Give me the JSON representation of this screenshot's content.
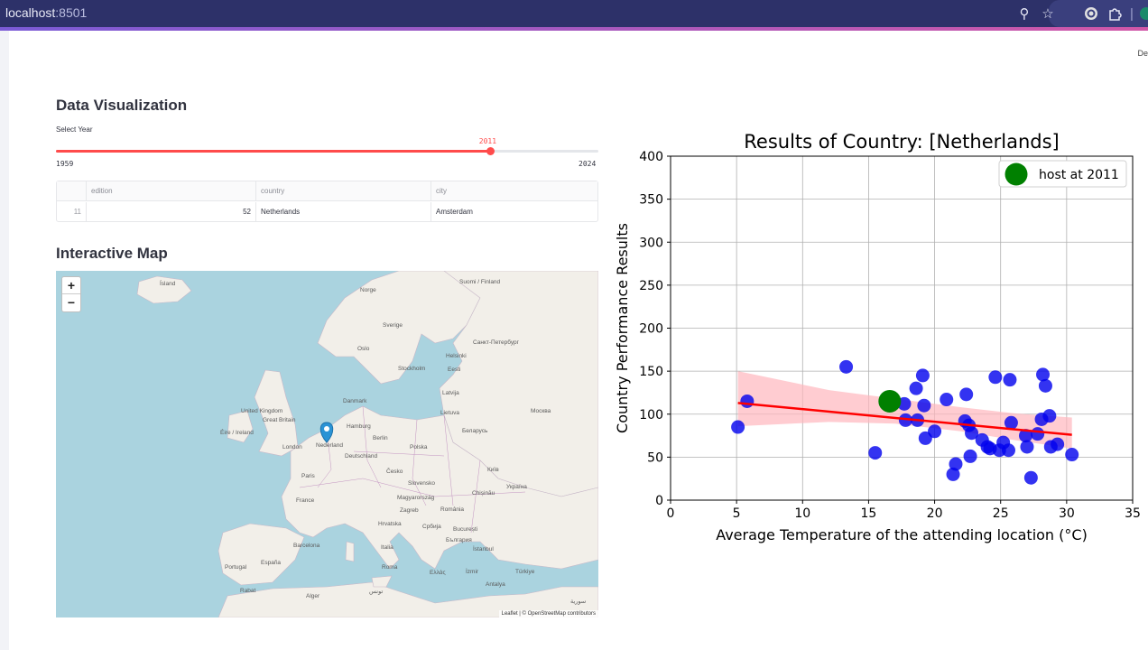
{
  "browser": {
    "url_host": "localhost",
    "url_port": ":8501"
  },
  "deploy_label": "De",
  "sections": {
    "data_viz_title": "Data Visualization",
    "map_title": "Interactive Map"
  },
  "slider": {
    "label": "Select Year",
    "min": 1959,
    "max": 2024,
    "value": 2011,
    "min_label": "1959",
    "max_label": "2024",
    "value_label": "2011"
  },
  "table": {
    "columns": [
      "edition",
      "country",
      "city"
    ],
    "rows": [
      {
        "index": "11",
        "edition": "52",
        "country": "Netherlands",
        "city": "Amsterdam"
      }
    ]
  },
  "map": {
    "attribution": "Leaflet | © OpenStreetMap contributors",
    "zoom_in": "+",
    "zoom_out": "−",
    "labels": [
      {
        "text": "Ísland",
        "dx": 115,
        "dy": 11
      },
      {
        "text": "Norge",
        "dx": 337,
        "dy": 18
      },
      {
        "text": "Suomi / Finland",
        "dx": 447,
        "dy": 9
      },
      {
        "text": "Sverige",
        "dx": 362,
        "dy": 57
      },
      {
        "text": "Санкт-Петербург",
        "dx": 462,
        "dy": 76
      },
      {
        "text": "Oslo",
        "dx": 334,
        "dy": 83
      },
      {
        "text": "Helsinki",
        "dx": 432,
        "dy": 91
      },
      {
        "text": "Stockholm",
        "dx": 379,
        "dy": 105
      },
      {
        "text": "Eesti",
        "dx": 434,
        "dy": 106
      },
      {
        "text": "Latvija",
        "dx": 428,
        "dy": 132
      },
      {
        "text": "Danmark",
        "dx": 318,
        "dy": 141
      },
      {
        "text": "Lietuva",
        "dx": 426,
        "dy": 154
      },
      {
        "text": "Москва",
        "dx": 526,
        "dy": 152
      },
      {
        "text": "United Kingdom",
        "dx": 205,
        "dy": 152
      },
      {
        "text": "Great Britain",
        "dx": 229,
        "dy": 162
      },
      {
        "text": "Hamburg",
        "dx": 322,
        "dy": 169
      },
      {
        "text": "Беларусь",
        "dx": 450,
        "dy": 174
      },
      {
        "text": "Éire / Ireland",
        "dx": 182,
        "dy": 176
      },
      {
        "text": "Berlin",
        "dx": 351,
        "dy": 182
      },
      {
        "text": "London",
        "dx": 251,
        "dy": 192
      },
      {
        "text": "Nederland",
        "dx": 288,
        "dy": 190
      },
      {
        "text": "Polska",
        "dx": 392,
        "dy": 192
      },
      {
        "text": "Deutschland",
        "dx": 320,
        "dy": 202
      },
      {
        "text": "Paris",
        "dx": 272,
        "dy": 224
      },
      {
        "text": "Česko",
        "dx": 366,
        "dy": 219
      },
      {
        "text": "Київ",
        "dx": 478,
        "dy": 217
      },
      {
        "text": "Україна",
        "dx": 499,
        "dy": 236
      },
      {
        "text": "Slovensko",
        "dx": 390,
        "dy": 232
      },
      {
        "text": "Chișinău",
        "dx": 461,
        "dy": 243
      },
      {
        "text": "France",
        "dx": 266,
        "dy": 251
      },
      {
        "text": "Magyarország",
        "dx": 378,
        "dy": 248
      },
      {
        "text": "Zagreb",
        "dx": 381,
        "dy": 262
      },
      {
        "text": "România",
        "dx": 426,
        "dy": 261
      },
      {
        "text": "Hrvatska",
        "dx": 357,
        "dy": 277
      },
      {
        "text": "Србија",
        "dx": 406,
        "dy": 280
      },
      {
        "text": "București",
        "dx": 440,
        "dy": 283
      },
      {
        "text": "България",
        "dx": 432,
        "dy": 295
      },
      {
        "text": "Barcelona",
        "dx": 263,
        "dy": 301
      },
      {
        "text": "Italia",
        "dx": 360,
        "dy": 303
      },
      {
        "text": "İstanbul",
        "dx": 462,
        "dy": 305
      },
      {
        "text": "Portugal",
        "dx": 187,
        "dy": 325
      },
      {
        "text": "España",
        "dx": 227,
        "dy": 320
      },
      {
        "text": "Roma",
        "dx": 361,
        "dy": 325
      },
      {
        "text": "Ελλάς",
        "dx": 414,
        "dy": 331
      },
      {
        "text": "İzmir",
        "dx": 454,
        "dy": 330
      },
      {
        "text": "Türkiye",
        "dx": 509,
        "dy": 330
      },
      {
        "text": "Antalya",
        "dx": 476,
        "dy": 344
      },
      {
        "text": "Rabat",
        "dx": 204,
        "dy": 351
      },
      {
        "text": "Alger",
        "dx": 277,
        "dy": 357
      },
      {
        "text": "تونس",
        "dx": 347,
        "dy": 351
      },
      {
        "text": "سورية",
        "dx": 570,
        "dy": 362
      }
    ]
  },
  "chart_data": {
    "type": "scatter",
    "title": "Results of Country: [Netherlands]",
    "xlabel": "Average Temperature of the attending location (°C)",
    "ylabel": "Country Performance Results",
    "xlim": [
      0,
      35
    ],
    "ylim": [
      0,
      400
    ],
    "xticks": [
      0,
      5,
      10,
      15,
      20,
      25,
      30,
      35
    ],
    "yticks": [
      0,
      50,
      100,
      150,
      200,
      250,
      300,
      350,
      400
    ],
    "grid": true,
    "legend": {
      "position": "top-right",
      "label": "host at 2011"
    },
    "colors": {
      "points": "#0000ee",
      "host": "#008000",
      "fit": "#ff0000",
      "band": "#ffb6bd"
    },
    "points": [
      [
        5.1,
        85
      ],
      [
        5.8,
        115
      ],
      [
        13.3,
        155
      ],
      [
        15.5,
        55
      ],
      [
        17.7,
        112
      ],
      [
        17.8,
        93
      ],
      [
        18.6,
        130
      ],
      [
        18.7,
        93
      ],
      [
        19.1,
        145
      ],
      [
        19.2,
        110
      ],
      [
        19.3,
        72
      ],
      [
        20.0,
        80
      ],
      [
        20.9,
        117
      ],
      [
        21.4,
        30
      ],
      [
        21.6,
        42
      ],
      [
        22.3,
        92
      ],
      [
        22.4,
        123
      ],
      [
        22.6,
        87
      ],
      [
        22.7,
        51
      ],
      [
        22.8,
        78
      ],
      [
        23.6,
        70
      ],
      [
        24.0,
        62
      ],
      [
        24.2,
        60
      ],
      [
        24.6,
        143
      ],
      [
        24.9,
        58
      ],
      [
        25.2,
        67
      ],
      [
        25.6,
        58
      ],
      [
        25.7,
        140
      ],
      [
        25.8,
        90
      ],
      [
        26.9,
        75
      ],
      [
        27.0,
        62
      ],
      [
        27.3,
        26
      ],
      [
        27.8,
        77
      ],
      [
        28.1,
        94
      ],
      [
        28.2,
        146
      ],
      [
        28.4,
        133
      ],
      [
        28.7,
        98
      ],
      [
        28.8,
        62
      ],
      [
        29.3,
        65
      ],
      [
        30.4,
        53
      ]
    ],
    "host_point": [
      16.6,
      115
    ],
    "fit_line": [
      [
        5.1,
        113
      ],
      [
        30.4,
        76
      ]
    ],
    "band": {
      "upper": [
        [
          5.1,
          150
        ],
        [
          12,
          128
        ],
        [
          17,
          118
        ],
        [
          22,
          108
        ],
        [
          26,
          101
        ],
        [
          30.4,
          96
        ]
      ],
      "lower": [
        [
          5.1,
          86
        ],
        [
          12,
          91
        ],
        [
          17,
          89
        ],
        [
          22,
          80
        ],
        [
          26,
          70
        ],
        [
          30.4,
          60
        ]
      ]
    }
  }
}
